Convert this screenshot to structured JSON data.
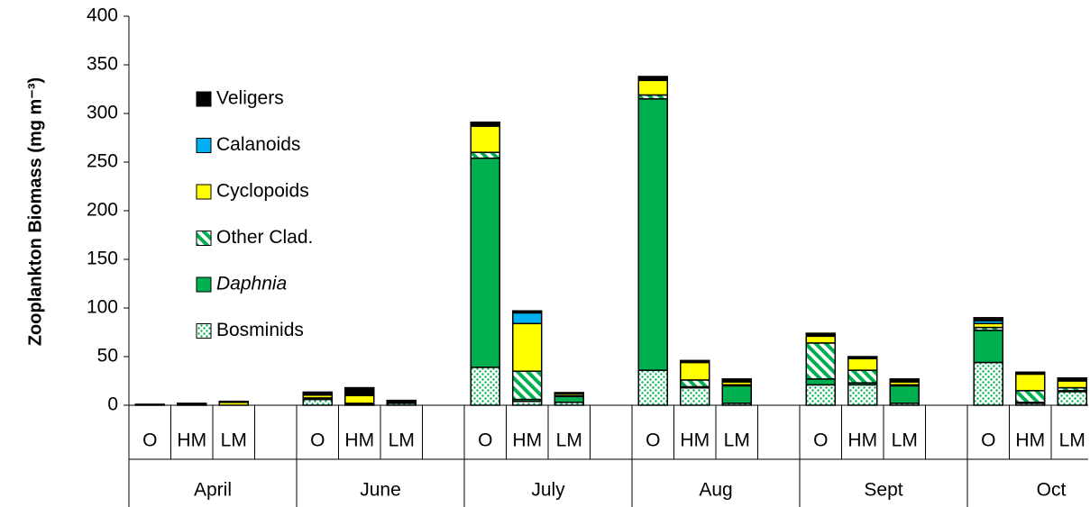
{
  "chart_data": {
    "type": "stacked-bar",
    "y_label": "Zooplankton Biomass (mg m⁻³)",
    "groups": [
      "April",
      "June",
      "July",
      "Aug",
      "Sept",
      "Oct"
    ],
    "categories": [
      "O",
      "HM",
      "LM",
      "O",
      "HM",
      "LM",
      "O",
      "HM",
      "LM",
      "O",
      "HM",
      "LM",
      "O",
      "HM",
      "LM",
      "O",
      "HM",
      "LM"
    ],
    "ylim": [
      0,
      400
    ],
    "yticks": [
      0,
      50,
      100,
      150,
      200,
      250,
      300,
      350,
      400
    ],
    "series": [
      {
        "name": "Bosminids",
        "color": "#00b050",
        "pattern": "dots",
        "values": [
          0,
          0.5,
          0,
          6,
          1,
          2,
          39,
          4,
          3,
          36,
          18,
          2,
          21,
          21,
          2,
          44,
          2,
          14
        ]
      },
      {
        "name": "Daphnia",
        "color": "#00b050",
        "values": [
          0,
          0,
          0,
          1,
          0.5,
          1,
          215,
          2,
          6,
          279,
          1,
          18,
          6,
          2,
          18,
          33,
          1,
          1
        ]
      },
      {
        "name": "Other Clad.",
        "color": "#00b050",
        "pattern": "stripes",
        "values": [
          0,
          0,
          0,
          0.5,
          0.5,
          0,
          6,
          29,
          1,
          4,
          7,
          1,
          37,
          13,
          1,
          3,
          12,
          3
        ]
      },
      {
        "name": "Cyclopoids",
        "color": "#ffff00",
        "values": [
          0,
          0,
          3,
          3,
          8,
          1,
          27,
          49,
          2,
          15,
          18,
          3,
          7,
          12,
          3,
          4,
          17,
          7
        ]
      },
      {
        "name": "Calanoids",
        "color": "#00b0f0",
        "values": [
          0,
          0,
          0,
          0,
          0,
          0,
          1,
          11,
          0,
          1,
          0,
          0,
          0,
          0,
          0,
          3,
          0,
          0
        ]
      },
      {
        "name": "Veligers",
        "color": "#000000",
        "values": [
          1,
          1.5,
          1,
          3,
          8,
          1,
          3,
          2,
          1,
          3,
          2,
          3,
          3,
          2,
          3,
          3,
          2,
          3
        ]
      }
    ]
  }
}
